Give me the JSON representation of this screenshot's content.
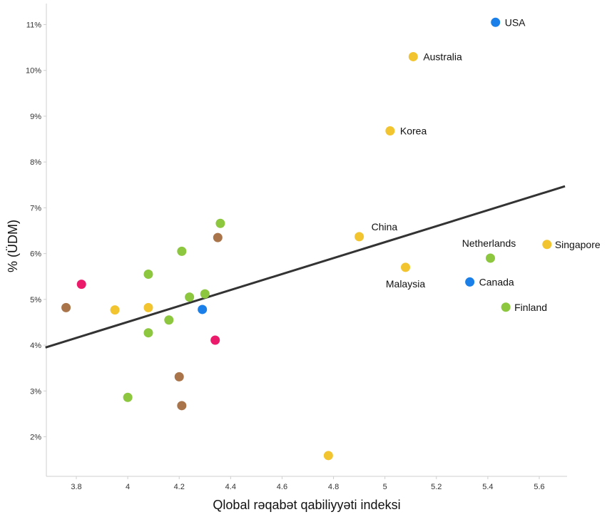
{
  "chart_data": {
    "type": "scatter",
    "title": "",
    "xlabel": "Qlobal rəqabət qabiliyyəti indeksi",
    "ylabel": "% (ÜDM)",
    "xlim": [
      3.68,
      5.7
    ],
    "ylim": [
      1.2,
      11.4
    ],
    "xticks": [
      3.8,
      4,
      4.2,
      4.4,
      4.6,
      4.8,
      5,
      5.2,
      5.4,
      5.6
    ],
    "xtick_labels": [
      "3.8",
      "4",
      "4.2",
      "4.4",
      "4.6",
      "4.8",
      "5",
      "5.2",
      "5.4",
      "5.6"
    ],
    "yticks": [
      2,
      3,
      4,
      5,
      6,
      7,
      8,
      9,
      10,
      11
    ],
    "ytick_labels": [
      "2%",
      "3%",
      "4%",
      "5%",
      "6%",
      "7%",
      "8%",
      "9%",
      "10%",
      "11%"
    ],
    "grid": false,
    "colors": {
      "yellow": "#f2c530",
      "green": "#8dc63f",
      "blue": "#1a7fe8",
      "brown": "#a9744a",
      "pink": "#ec1a6a",
      "trend": "#333333"
    },
    "trendline": {
      "x": [
        3.68,
        5.7
      ],
      "y": [
        3.95,
        7.47
      ]
    },
    "points": [
      {
        "x": 5.43,
        "y": 11.05,
        "color": "blue",
        "label": "USA"
      },
      {
        "x": 5.11,
        "y": 10.3,
        "color": "yellow",
        "label": "Australia"
      },
      {
        "x": 5.02,
        "y": 8.68,
        "color": "yellow",
        "label": "Korea"
      },
      {
        "x": 4.9,
        "y": 6.37,
        "color": "yellow",
        "label": "China"
      },
      {
        "x": 5.08,
        "y": 5.7,
        "color": "yellow",
        "label": "Malaysia"
      },
      {
        "x": 5.41,
        "y": 5.9,
        "color": "green",
        "label": "Netherlands"
      },
      {
        "x": 5.63,
        "y": 6.2,
        "color": "yellow",
        "label": "Singapore"
      },
      {
        "x": 5.33,
        "y": 5.38,
        "color": "blue",
        "label": "Canada"
      },
      {
        "x": 5.47,
        "y": 4.83,
        "color": "green",
        "label": "Finland"
      },
      {
        "x": 3.76,
        "y": 4.82,
        "color": "brown",
        "label": ""
      },
      {
        "x": 3.82,
        "y": 5.33,
        "color": "pink",
        "label": ""
      },
      {
        "x": 3.95,
        "y": 4.77,
        "color": "yellow",
        "label": ""
      },
      {
        "x": 4.0,
        "y": 2.86,
        "color": "green",
        "label": ""
      },
      {
        "x": 4.08,
        "y": 5.55,
        "color": "green",
        "label": ""
      },
      {
        "x": 4.08,
        "y": 4.82,
        "color": "yellow",
        "label": ""
      },
      {
        "x": 4.08,
        "y": 4.27,
        "color": "green",
        "label": ""
      },
      {
        "x": 4.16,
        "y": 4.55,
        "color": "green",
        "label": ""
      },
      {
        "x": 4.2,
        "y": 3.31,
        "color": "brown",
        "label": ""
      },
      {
        "x": 4.21,
        "y": 6.05,
        "color": "green",
        "label": ""
      },
      {
        "x": 4.21,
        "y": 2.68,
        "color": "brown",
        "label": ""
      },
      {
        "x": 4.24,
        "y": 5.05,
        "color": "green",
        "label": ""
      },
      {
        "x": 4.29,
        "y": 4.78,
        "color": "blue",
        "label": ""
      },
      {
        "x": 4.3,
        "y": 5.12,
        "color": "green",
        "label": ""
      },
      {
        "x": 4.34,
        "y": 4.11,
        "color": "pink",
        "label": ""
      },
      {
        "x": 4.35,
        "y": 6.35,
        "color": "brown",
        "label": ""
      },
      {
        "x": 4.36,
        "y": 6.66,
        "color": "green",
        "label": ""
      },
      {
        "x": 4.78,
        "y": 1.59,
        "color": "yellow",
        "label": ""
      }
    ]
  }
}
